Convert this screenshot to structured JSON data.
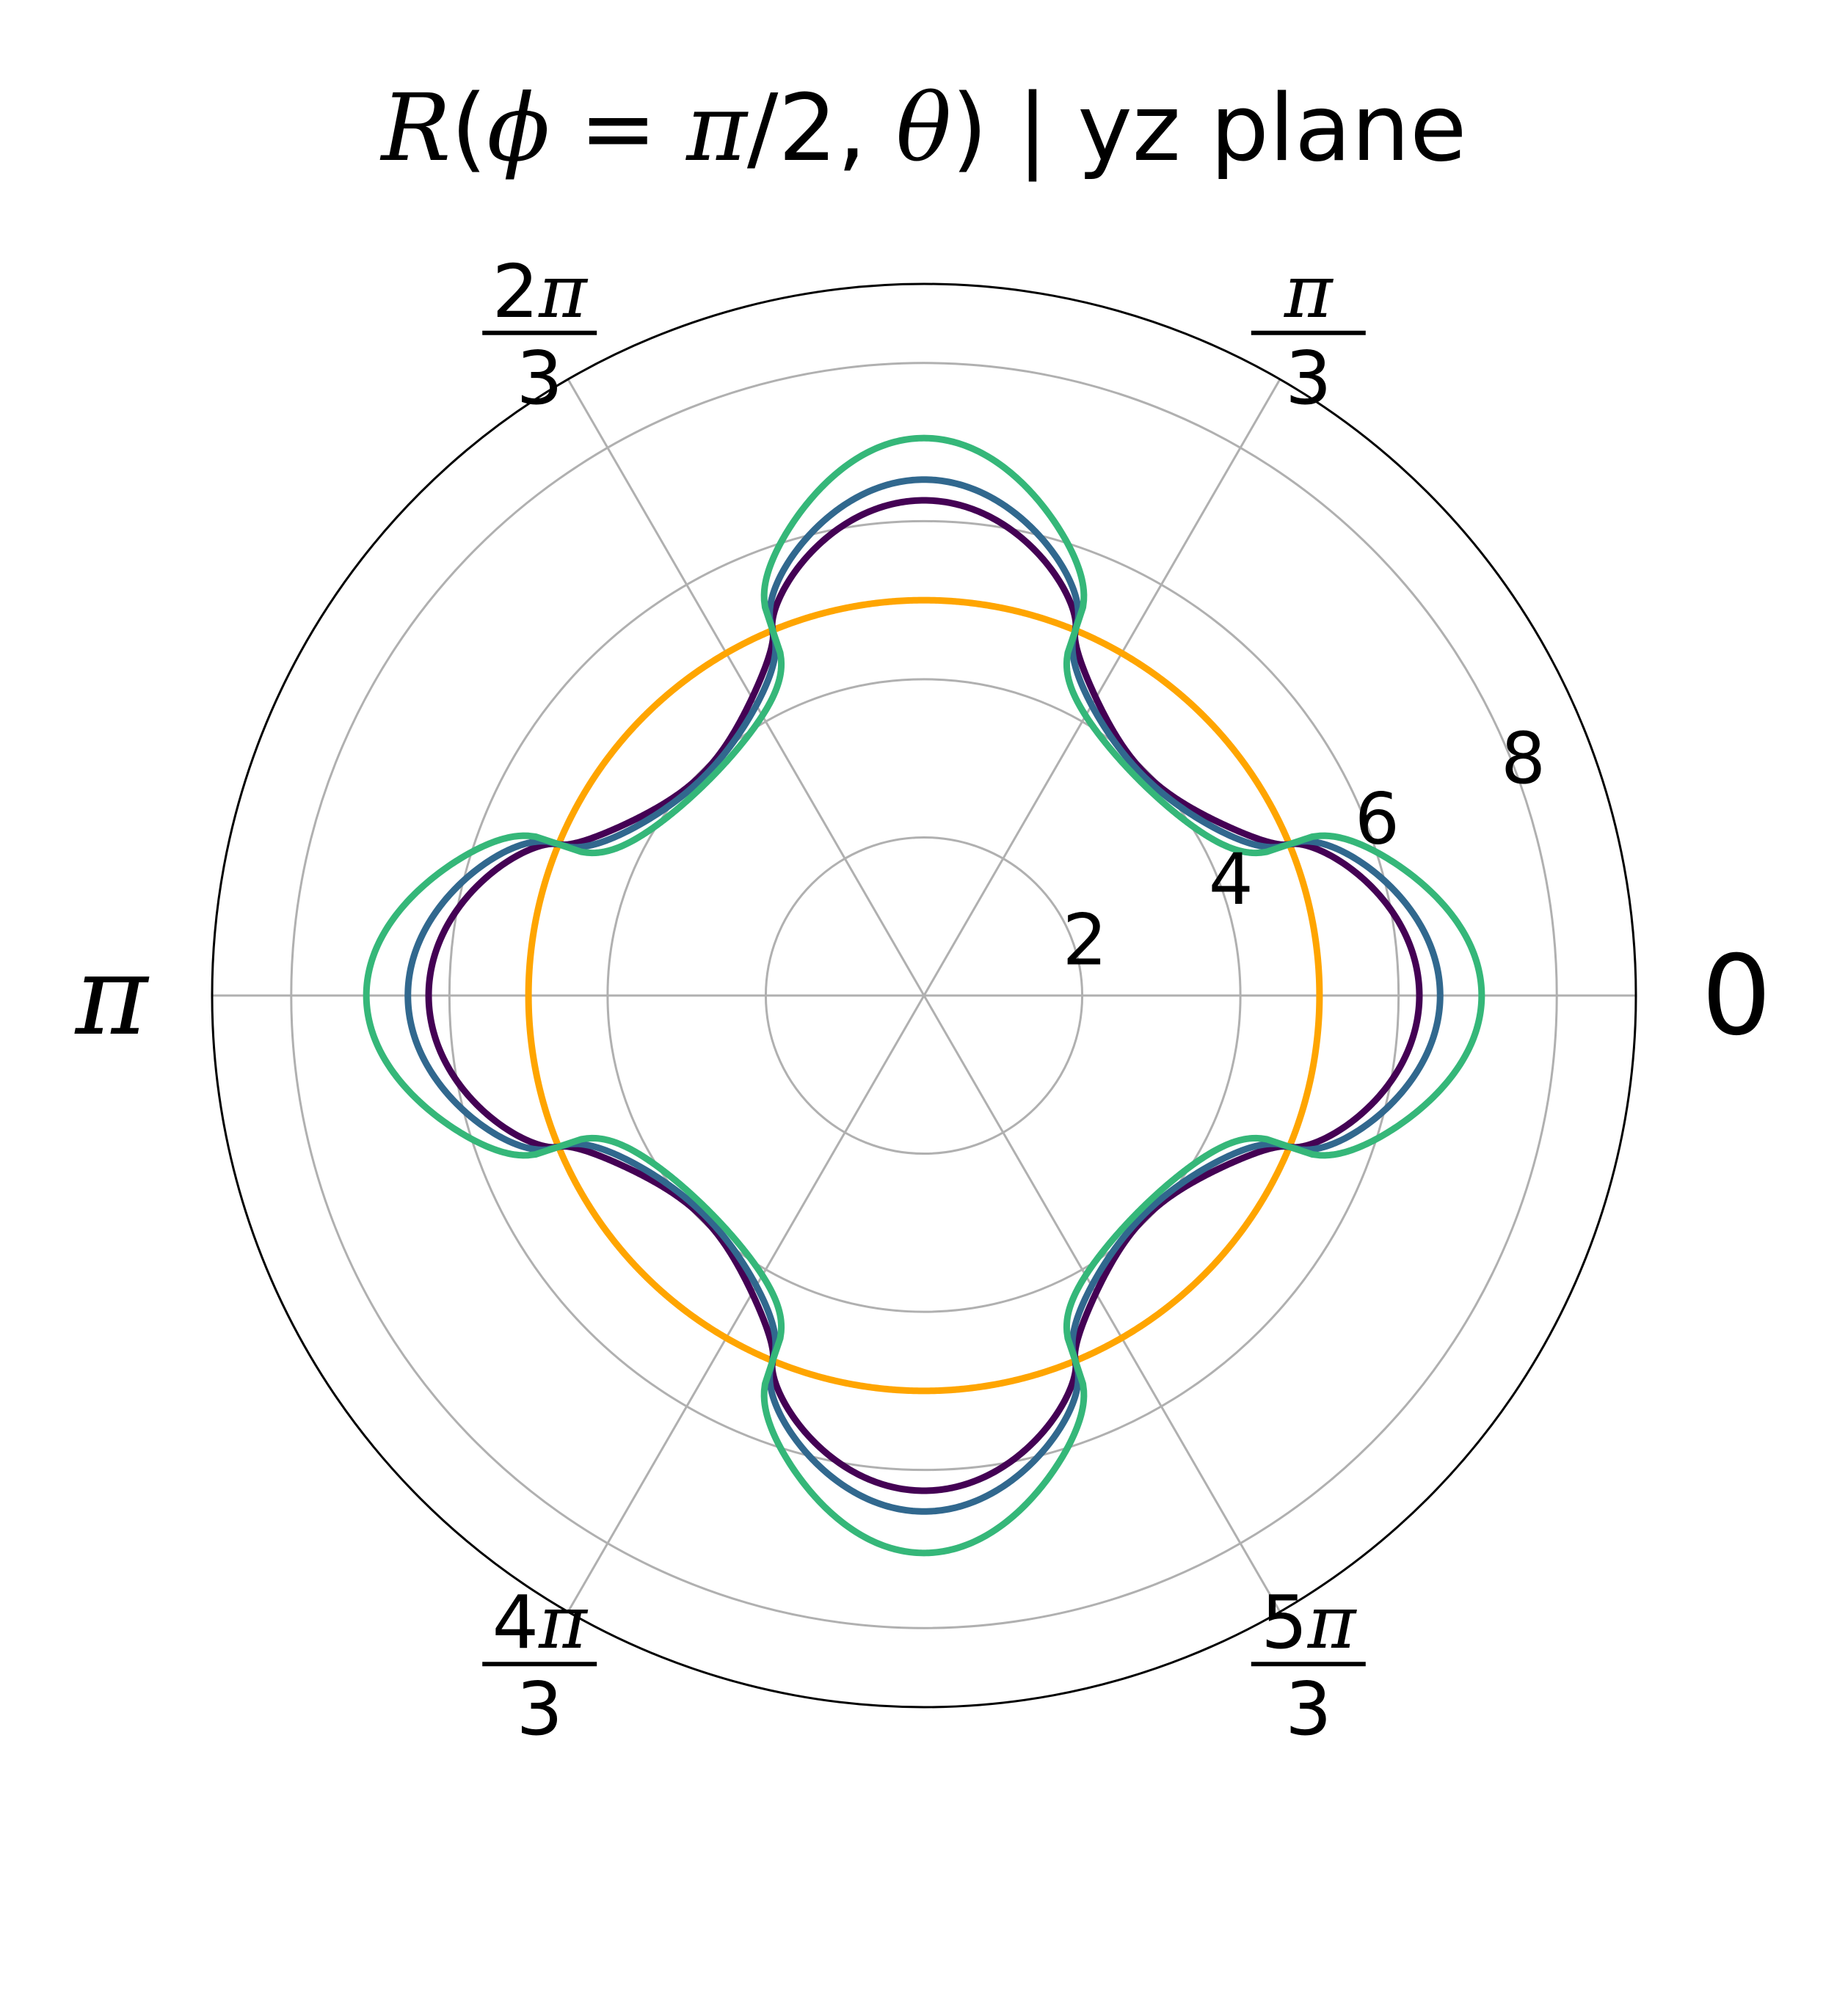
{
  "chart_data": {
    "type": "polar-line",
    "title": "R(ϕ = π/2, θ) | yz plane",
    "title_parts": {
      "func": "R",
      "open": "(",
      "phi": "ϕ",
      "eq": " = ",
      "pi": "π",
      "half": "/2, ",
      "theta": "θ",
      "close": ")",
      "rest": " | yz plane"
    },
    "r_axis": {
      "min": 0,
      "max": 9,
      "ticks": [
        2,
        4,
        6,
        8
      ],
      "tick_labels": [
        "2",
        "4",
        "6",
        "8"
      ]
    },
    "theta_axis": {
      "ticks_deg": [
        0,
        60,
        120,
        180,
        240,
        300
      ],
      "tick_labels": [
        {
          "num": "0",
          "den": ""
        },
        {
          "num": "π",
          "den": "3"
        },
        {
          "num": "2π",
          "den": "3"
        },
        {
          "num": "π",
          "den": ""
        },
        {
          "num": "4π",
          "den": "3"
        },
        {
          "num": "5π",
          "den": "3"
        }
      ]
    },
    "grid": true,
    "series": [
      {
        "name": "orange",
        "color": "#ffa500",
        "base": 5.0,
        "a4": 0.0,
        "sharp": 0.0
      },
      {
        "name": "purple",
        "color": "#440154",
        "base": 5.0,
        "a4": 0.5,
        "sharp": 1.5
      },
      {
        "name": "blue",
        "color": "#31688e",
        "base": 5.0,
        "a4": 0.5,
        "sharp": 3.0
      },
      {
        "name": "green",
        "color": "#35b779",
        "base": 5.0,
        "a4": 0.5,
        "sharp": 6.0
      }
    ]
  }
}
